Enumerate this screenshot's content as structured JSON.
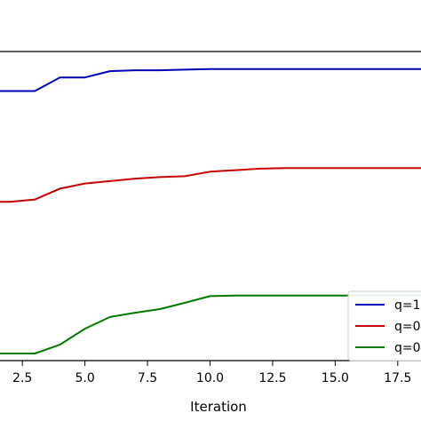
{
  "chart_data": {
    "type": "line",
    "title": "",
    "xlabel": "Iteration",
    "ylabel": "",
    "xlim": [
      1.5,
      18.5
    ],
    "ylim": [
      0,
      1
    ],
    "x_ticks": [
      2.5,
      5.0,
      7.5,
      10.0,
      12.5,
      15.0,
      17.5
    ],
    "x_tick_labels": [
      "2.5",
      "5.0",
      "7.5",
      "10.0",
      "12.5",
      "15.0",
      "17.5"
    ],
    "grid": false,
    "legend_position": "lower-right",
    "x": [
      1,
      2,
      3,
      4,
      5,
      6,
      7,
      8,
      9,
      10,
      11,
      12,
      13,
      14,
      15,
      16,
      17,
      18,
      19
    ],
    "series": [
      {
        "name": "q=1",
        "legend_label": "q=1",
        "color": "#0000b4",
        "values": [
          0.869,
          0.869,
          0.869,
          0.914,
          0.914,
          0.935,
          0.938,
          0.938,
          0.94,
          0.942,
          0.942,
          0.942,
          0.942,
          0.942,
          0.942,
          0.942,
          0.942,
          0.942,
          0.942
        ]
      },
      {
        "name": "q=0",
        "legend_label": "q=0",
        "color": "#c80000",
        "values": [
          0.502,
          0.502,
          0.51,
          0.546,
          0.563,
          0.571,
          0.579,
          0.584,
          0.587,
          0.602,
          0.607,
          0.612,
          0.614,
          0.614,
          0.614,
          0.614,
          0.614,
          0.614,
          0.614
        ]
      },
      {
        "name": "q=0",
        "legend_label": "q=0",
        "color": "#007a00",
        "values": [
          0.0,
          0.0,
          0.0,
          0.029,
          0.082,
          0.121,
          0.135,
          0.147,
          0.168,
          0.19,
          0.192,
          0.192,
          0.192,
          0.192,
          0.192,
          0.192,
          0.192,
          0.192,
          0.192
        ]
      }
    ],
    "reference_line": {
      "y": 1.0,
      "color": "#000000"
    }
  }
}
